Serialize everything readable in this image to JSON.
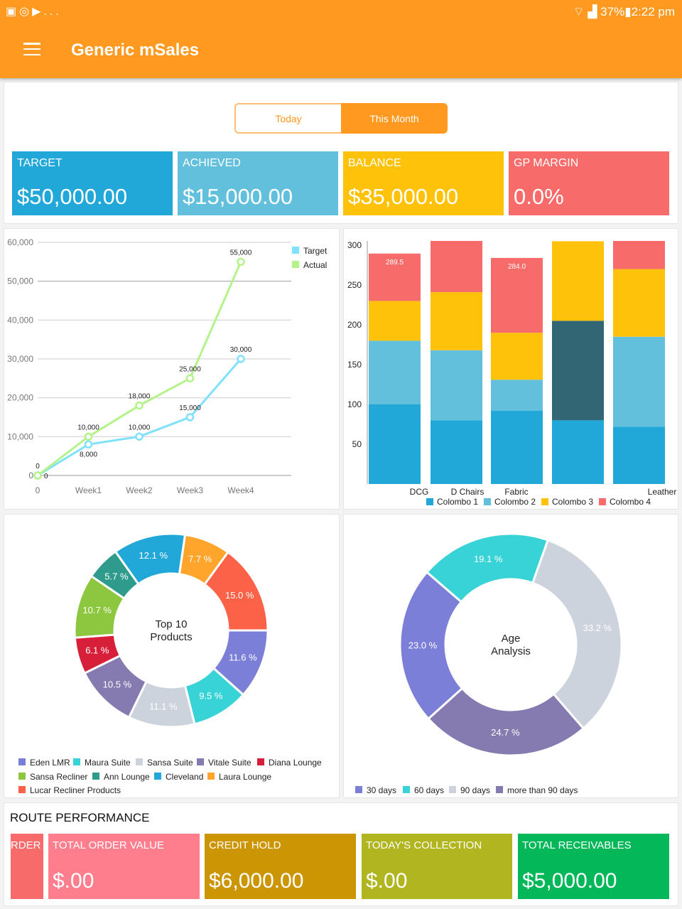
{
  "status_bar": {
    "left_icons": [
      "gallery-icon",
      "sync-icon",
      "play-store-icon"
    ],
    "more": "...",
    "right": "37%",
    "time": "2:22 pm"
  },
  "app": {
    "title": "Generic mSales"
  },
  "period_toggle": {
    "options": [
      "Today",
      "This Month"
    ],
    "selected": "This Month"
  },
  "kpis": [
    {
      "label": "TARGET",
      "value": "$50,000.00",
      "color": "#21a8d8"
    },
    {
      "label": "ACHIEVED",
      "value": "$15,000.00",
      "color": "#62c0dd"
    },
    {
      "label": "BALANCE",
      "value": "$35,000.00",
      "color": "#ffc20b"
    },
    {
      "label": "GP MARGIN",
      "value": "0.0%",
      "color": "#f86b6b"
    }
  ],
  "chart_data": [
    {
      "type": "line",
      "x": [
        "0",
        "Week1",
        "Week2",
        "Week3",
        "Week4"
      ],
      "ylim": [
        0,
        60000
      ],
      "yticks": [
        "0",
        "10,000",
        "20,000",
        "30,000",
        "40,000",
        "50,000",
        "60,000"
      ],
      "grid": true,
      "legend": "top-right",
      "series": [
        {
          "name": "Target",
          "values": [
            0,
            8000,
            10000,
            15000,
            30000
          ],
          "labels": [
            "0",
            "8,000",
            "10,000",
            "15,000",
            "30,000"
          ],
          "color": "#80e1ff"
        },
        {
          "name": "Actual",
          "values": [
            0,
            10000,
            18000,
            25000,
            55000
          ],
          "labels": [
            "0",
            "10,000",
            "18,000",
            "25,000",
            "55,000"
          ],
          "color": "#b4f38a"
        }
      ]
    },
    {
      "type": "bar",
      "stacked": true,
      "categories": [
        "DCG",
        "D Chairs",
        "Fabric",
        "",
        "Leather"
      ],
      "ylim": [
        0,
        300
      ],
      "yticks": [
        "50",
        "100",
        "150",
        "200",
        "250",
        "300"
      ],
      "legend": "bottom",
      "series": [
        {
          "name": "Colombo 1",
          "values": [
            100,
            80,
            92,
            80,
            72
          ],
          "color": "#21a8d8"
        },
        {
          "name": "Colombo 2",
          "values": [
            80,
            88,
            39,
            125,
            113
          ],
          "color": "#62c0dd",
          "highlight_color": "#336674",
          "highlight_index": 3
        },
        {
          "name": "Colombo 3",
          "values": [
            50,
            73,
            59,
            100,
            85
          ],
          "color": "#ffc20b"
        },
        {
          "name": "Colombo 4",
          "values": [
            59.5,
            70,
            94,
            0,
            40
          ],
          "color": "#f86b6b"
        }
      ],
      "total_labels": [
        "289.5",
        "",
        "284.0",
        "",
        ""
      ]
    },
    {
      "type": "pie",
      "center_text": [
        "Top 10",
        "Products"
      ],
      "legend": "bottom",
      "slices": [
        {
          "name": "Eden LMR",
          "value": 11.6,
          "label": "11.6 %",
          "color": "#7b7fd8"
        },
        {
          "name": "Maura Suite",
          "value": 9.5,
          "label": "9.5 %",
          "color": "#37d3d7"
        },
        {
          "name": "Sansa Suite",
          "value": 11.1,
          "label": "11.1 %",
          "color": "#cdd3dd"
        },
        {
          "name": "Vitale Suite",
          "value": 10.5,
          "label": "10.5 %",
          "color": "#867bb0"
        },
        {
          "name": "Diana Lounge",
          "value": 6.1,
          "label": "6.1 %",
          "color": "#d71f3a"
        },
        {
          "name": "Sansa Recliner",
          "value": 10.7,
          "label": "10.7 %",
          "color": "#8dc63f"
        },
        {
          "name": "Ann Lounge",
          "value": 5.7,
          "label": "5.7 %",
          "color": "#2e9b8c"
        },
        {
          "name": "Cleveland",
          "value": 12.1,
          "label": "12.1 %",
          "color": "#21a8d8"
        },
        {
          "name": "Laura Lounge",
          "value": 7.7,
          "label": "7.7 %",
          "color": "#ffa52c"
        },
        {
          "name": "Lucar Recliner Products",
          "value": 15.0,
          "label": "15.0 %",
          "color": "#fb6247"
        }
      ]
    },
    {
      "type": "pie",
      "center_text": [
        "Age",
        "Analysis"
      ],
      "legend": "bottom",
      "slices": [
        {
          "name": "30 days",
          "value": 23.0,
          "label": "23.0 %",
          "color": "#7b7fd8"
        },
        {
          "name": "60 days",
          "value": 19.1,
          "label": "19.1 %",
          "color": "#37d3d7"
        },
        {
          "name": "90 days",
          "value": 33.2,
          "label": "33.2 %",
          "color": "#cdd3dd"
        },
        {
          "name": "more than 90 days",
          "value": 24.7,
          "label": "24.7 %",
          "color": "#867bb0"
        }
      ]
    }
  ],
  "route": {
    "title": "ROUTE PERFORMANCE",
    "cards": [
      {
        "label": "RDER",
        "value": "",
        "color": "#f86b6b"
      },
      {
        "label": "TOTAL ORDER VALUE",
        "value": "$.00",
        "color": "#ff7e8e"
      },
      {
        "label": "CREDIT HOLD",
        "value": "$6,000.00",
        "color": "#cc9504"
      },
      {
        "label": "TODAY'S COLLECTION",
        "value": "$.00",
        "color": "#b0b520"
      },
      {
        "label": "TOTAL RECEIVABLES",
        "value": "$5,000.00",
        "color": "#04b85a"
      }
    ]
  }
}
